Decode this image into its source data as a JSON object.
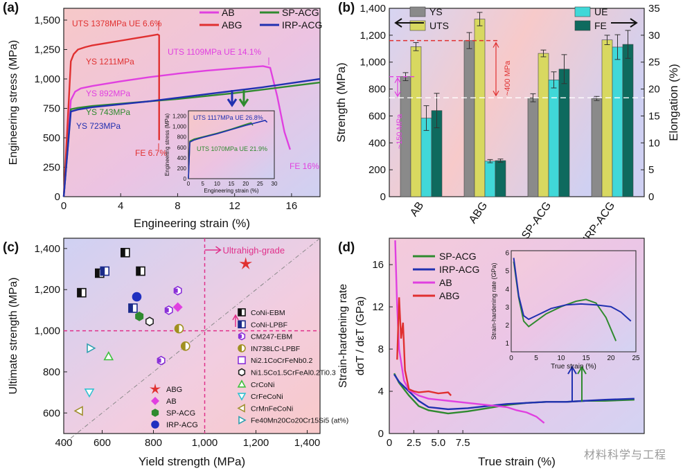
{
  "chart_data": [
    {
      "panel": "(a)",
      "type": "line",
      "xlabel": "Engineering strain (%)",
      "ylabel": "Engineering stress (MPa)",
      "xlim": [
        0,
        18
      ],
      "ylim": [
        0,
        1600
      ],
      "xticks": [
        "0",
        "4",
        "8",
        "12",
        "16"
      ],
      "yticks": [
        "0",
        "250",
        "500",
        "750",
        "1,000",
        "1,250",
        "1,500"
      ],
      "legend_placement": "top-right",
      "series": [
        {
          "name": "AB",
          "color": "#e040e0",
          "x": [
            0,
            0.5,
            0.8,
            1.2,
            2,
            4,
            6,
            8,
            10,
            12,
            14,
            14.5,
            15,
            15.5,
            15.9
          ],
          "y": [
            0,
            820,
            892,
            920,
            940,
            980,
            1015,
            1045,
            1070,
            1090,
            1109,
            1095,
            850,
            550,
            400
          ]
        },
        {
          "name": "ABG",
          "color": "#e03030",
          "x": [
            0,
            0.5,
            0.7,
            1.0,
            1.5,
            2,
            3,
            4,
            5,
            6,
            6.6,
            6.7,
            6.7
          ],
          "y": [
            0,
            1150,
            1211,
            1250,
            1270,
            1285,
            1305,
            1325,
            1345,
            1365,
            1378,
            1370,
            480
          ]
        },
        {
          "name": "SP-ACG",
          "color": "#2f8a2f",
          "x": [
            0,
            0.5,
            1,
            2,
            4,
            6,
            8,
            10,
            12,
            14,
            16,
            18
          ],
          "y": [
            0,
            743,
            755,
            770,
            790,
            810,
            830,
            855,
            880,
            910,
            940,
            970
          ]
        },
        {
          "name": "IRP-ACG",
          "color": "#2030b0",
          "x": [
            0,
            0.5,
            1,
            2,
            4,
            6,
            8,
            10,
            12,
            14,
            16,
            18
          ],
          "y": [
            0,
            723,
            740,
            760,
            785,
            810,
            840,
            870,
            900,
            930,
            965,
            1000
          ]
        }
      ],
      "annotations": [
        "UTS 1378MPa  UE 6.6%",
        "YS 1211MPa",
        "UTS 1109MPa  UE 14.1%",
        "YS 892MPa",
        "YS 743MPa",
        "YS 723MPa",
        "FE 6.7%",
        "FE 16%"
      ],
      "inset": {
        "xlabel": "Engineering strain (%)",
        "ylabel": "Engineering stress (MPa)",
        "xticks": [
          "0",
          "5",
          "10",
          "15",
          "20",
          "25",
          "30"
        ],
        "yticks": [
          "0",
          "200",
          "400",
          "600",
          "800",
          "1,000",
          "1,200"
        ],
        "annotations": [
          "UTS 1117MPa UE 26.8%",
          "UTS 1070MPa UE 21.9%"
        ]
      }
    },
    {
      "panel": "(b)",
      "type": "bar",
      "categories": [
        "AB",
        "ABG",
        "SP-ACG",
        "IRP-ACG"
      ],
      "ylabel": "Strength (MPa)",
      "y2label": "Elongation (%)",
      "ylim": [
        0,
        1400
      ],
      "y2lim": [
        0,
        35
      ],
      "yticks": [
        "0",
        "200",
        "400",
        "600",
        "800",
        "1,000",
        "1,200",
        "1,400"
      ],
      "y2ticks": [
        "0",
        "5",
        "10",
        "15",
        "20",
        "25",
        "30",
        "35"
      ],
      "series": [
        {
          "name": "YS",
          "axis": "left",
          "color": "#8a8a8a",
          "values": [
            892,
            1160,
            735,
            730
          ],
          "errors": [
            30,
            60,
            30,
            15
          ]
        },
        {
          "name": "UTS",
          "axis": "left",
          "color": "#d8d860",
          "values": [
            1115,
            1320,
            1065,
            1165
          ],
          "errors": [
            30,
            50,
            25,
            35
          ]
        },
        {
          "name": "UE",
          "axis": "right",
          "color": "#40d8d8",
          "values": [
            14.6,
            6.6,
            21.7,
            27.8
          ],
          "errors": [
            2.3,
            0.3,
            1.5,
            2.3
          ]
        },
        {
          "name": "FE",
          "axis": "right",
          "color": "#0e6a5e",
          "values": [
            16,
            6.7,
            23.7,
            28.3
          ],
          "errors": [
            3.2,
            0.3,
            2.7,
            2.6
          ]
        }
      ],
      "annotations": [
        "~400 MPa",
        "~150 MPa"
      ]
    },
    {
      "panel": "(c)",
      "type": "scatter",
      "xlabel": "Yield strength (MPa)",
      "ylabel": "Ultimate strength (MPa)",
      "xlim": [
        450,
        1450
      ],
      "ylim": [
        500,
        1450
      ],
      "xticks": [
        "400",
        "600",
        "800",
        "1,000",
        "1,200",
        "1,400"
      ],
      "yticks": [
        "600",
        "800",
        "1,000",
        "1,200",
        "1,400"
      ],
      "annotations": [
        "Ultrahigh-grade"
      ],
      "series": [
        {
          "name": "CoNi-EBM",
          "marker": "square-half",
          "color": "#111111",
          "points": [
            [
              520,
              1185
            ],
            [
              590,
              1280
            ],
            [
              690,
              1380
            ],
            [
              750,
              1290
            ]
          ]
        },
        {
          "name": "CoNi-LPBF",
          "marker": "square-half",
          "color": "#1a2a8a",
          "points": [
            [
              610,
              1290
            ],
            [
              720,
              1110
            ]
          ]
        },
        {
          "name": "CM247-EBM",
          "marker": "hexagon-half",
          "color": "#8a30d8",
          "points": [
            [
              830,
              855
            ],
            [
              860,
              1100
            ],
            [
              895,
              1195
            ]
          ]
        },
        {
          "name": "IN738LC-LPBF",
          "marker": "circle-half",
          "color": "#a09020",
          "points": [
            [
              900,
              1010
            ],
            [
              925,
              925
            ]
          ]
        },
        {
          "name": "Ni2.1CoCrFeNb0.2",
          "marker": "square-open",
          "color": "#8a30d8",
          "points": []
        },
        {
          "name": "Ni1.5Co1.5CrFeAl0.2Ti0.3",
          "marker": "hexagon-open",
          "color": "#222222",
          "points": [
            [
              785,
              1045
            ]
          ]
        },
        {
          "name": "CrCoNi",
          "marker": "triangle-up-open",
          "color": "#40c040",
          "points": [
            [
              625,
              875
            ]
          ]
        },
        {
          "name": "CrFeCoNi",
          "marker": "triangle-down-open",
          "color": "#30c0d0",
          "points": [
            [
              550,
              700
            ]
          ]
        },
        {
          "name": "CrMnFeCoNi",
          "marker": "triangle-left-open",
          "color": "#a09030",
          "points": [
            [
              510,
              610
            ]
          ]
        },
        {
          "name": "Fe40Mn20Co20Cr15Si5 (at%)",
          "marker": "triangle-right-open",
          "color": "#30a0b0",
          "points": [
            [
              555,
              915
            ]
          ]
        },
        {
          "name": "ABG",
          "marker": "star",
          "color": "#e03030",
          "points": [
            [
              1160,
              1325
            ]
          ]
        },
        {
          "name": "AB",
          "marker": "diamond",
          "color": "#e040e0",
          "points": [
            [
              895,
              1115
            ]
          ]
        },
        {
          "name": "SP-ACG",
          "marker": "hexagon",
          "color": "#2f8a2f",
          "points": [
            [
              745,
              1070
            ]
          ]
        },
        {
          "name": "IRP-ACG",
          "marker": "circle",
          "color": "#2030c0",
          "points": [
            [
              735,
              1165
            ]
          ]
        }
      ]
    },
    {
      "panel": "(d)",
      "type": "line",
      "xlabel": "True strain (%)",
      "ylabel": "Strain-hardening rate",
      "ylabel2": "dσT / dεT (GPa)",
      "xlim": [
        0,
        26
      ],
      "ylim": [
        0,
        18.5
      ],
      "xticks": [
        "0",
        "2.5",
        "5.0",
        "7.5"
      ],
      "yticks": [
        "0",
        "4",
        "8",
        "12",
        "16"
      ],
      "legend_placement": "top-left",
      "series": [
        {
          "name": "SP-ACG",
          "color": "#2f8a2f",
          "x": [
            0.5,
            1,
            2,
            3,
            4,
            6,
            8,
            10,
            12,
            14,
            16,
            18,
            20,
            22,
            25
          ],
          "y": [
            5.7,
            4.8,
            3.6,
            2.6,
            2.2,
            1.9,
            2.1,
            2.4,
            2.7,
            2.9,
            3.0,
            3.0,
            3.1,
            3.1,
            3.2
          ]
        },
        {
          "name": "IRP-ACG",
          "color": "#2030b0",
          "x": [
            0.5,
            1,
            2,
            3,
            4,
            6,
            8,
            10,
            12,
            14,
            16,
            18,
            20,
            22,
            25
          ],
          "y": [
            5.6,
            4.9,
            4.0,
            3.1,
            2.5,
            2.3,
            2.4,
            2.6,
            2.8,
            2.9,
            3.0,
            3.0,
            3.1,
            3.2,
            3.3
          ]
        },
        {
          "name": "AB",
          "color": "#e040e0",
          "x": [
            0.6,
            0.8,
            1.0,
            1.5,
            2,
            3,
            4,
            6,
            8,
            10,
            12,
            13,
            14,
            15,
            15.8
          ],
          "y": [
            18.3,
            12,
            8,
            5,
            4.1,
            3.6,
            3.3,
            3.1,
            2.9,
            2.7,
            2.5,
            2.2,
            2.0,
            1.6,
            1.0
          ]
        },
        {
          "name": "ABG",
          "color": "#e03030",
          "x": [
            0.8,
            1.0,
            1.2,
            1.4,
            1.6,
            2,
            2.5,
            3,
            4,
            5,
            6,
            6.3
          ],
          "y": [
            7,
            12.9,
            9,
            10.5,
            6,
            4.2,
            4.0,
            3.9,
            4.0,
            3.8,
            3.9,
            3.6
          ]
        }
      ],
      "inset": {
        "xlabel": "True strain (%)",
        "ylabel": "Strain-hardening rate (GPa)",
        "xticks": [
          "0",
          "5",
          "10",
          "15",
          "20",
          "25"
        ],
        "yticks": [
          "1",
          "2",
          "3",
          "4",
          "5",
          "6"
        ]
      }
    }
  ],
  "watermark": "材料科学与工程"
}
